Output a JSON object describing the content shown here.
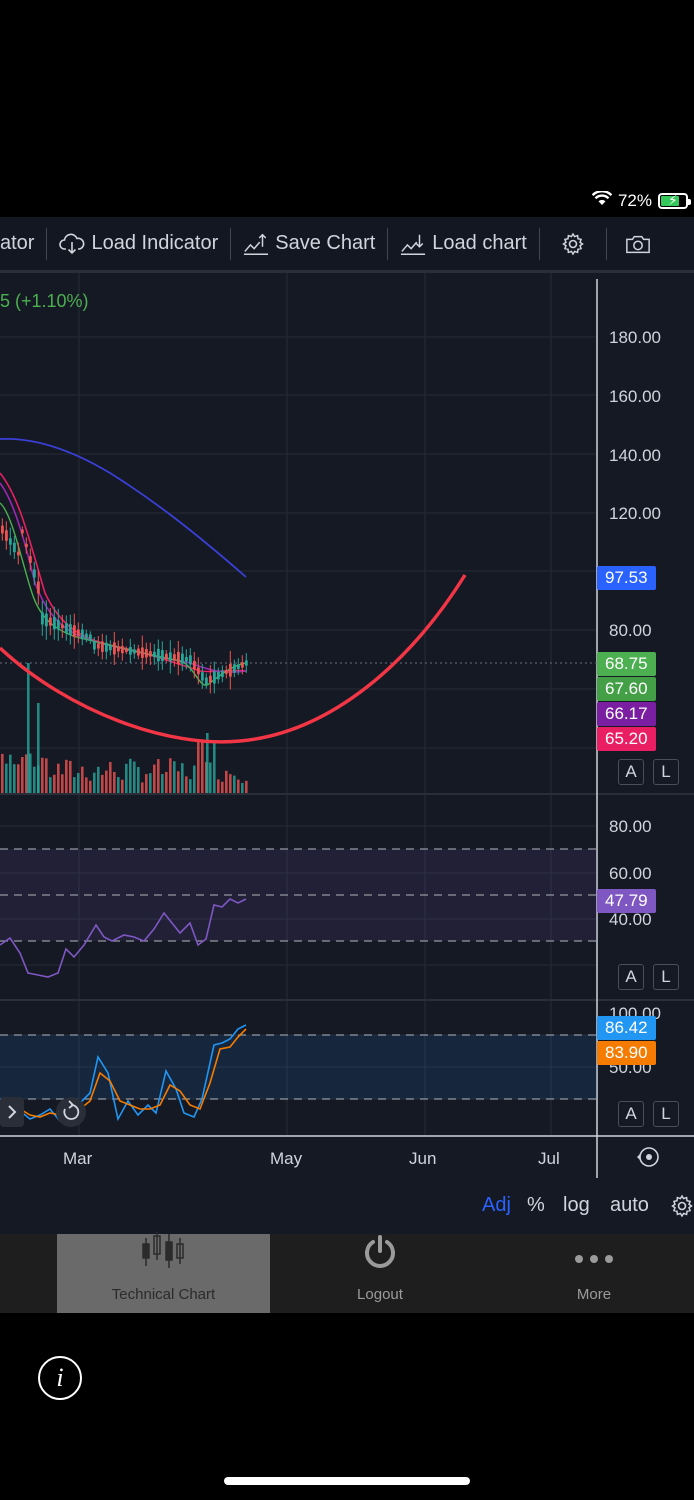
{
  "status_bar": {
    "battery": "72%"
  },
  "toolbar": {
    "items": [
      {
        "label": "ator"
      },
      {
        "label": "Load Indicator",
        "icon": "cloud-download-icon"
      },
      {
        "label": "Save Chart",
        "icon": "chart-upload-icon"
      },
      {
        "label": "Load chart",
        "icon": "chart-download-icon"
      }
    ],
    "settings_icon": "gear-icon",
    "camera_icon": "camera-icon"
  },
  "chart": {
    "change_label": "5 (+1.10%)",
    "price_axis": [
      "180.00",
      "160.00",
      "140.00",
      "120.00",
      "80.00"
    ],
    "price_tags": [
      {
        "text": "97.53",
        "color": "#2962ff"
      },
      {
        "text": "68.75",
        "color": "#4caf50"
      },
      {
        "text": "67.60",
        "color": "#43a047"
      },
      {
        "text": "66.17",
        "color": "#7b1fa2"
      },
      {
        "text": "65.20",
        "color": "#e91e63"
      }
    ],
    "rsi_axis": [
      "80.00",
      "60.00",
      "40.00"
    ],
    "rsi_tag": {
      "text": "47.79",
      "color": "#7e57c2"
    },
    "stoch_axis": [
      "100.00",
      "50.00"
    ],
    "stoch_tags": [
      {
        "text": "86.42",
        "color": "#2196f3"
      },
      {
        "text": "83.90",
        "color": "#f57c00"
      }
    ],
    "time_axis": [
      "Mar",
      "May",
      "Jun",
      "Jul"
    ],
    "pane_buttons": {
      "auto_label": "A",
      "log_label": "L"
    }
  },
  "scale_bar": {
    "adj": "Adj",
    "percent": "%",
    "log": "log",
    "auto": "auto"
  },
  "tab_bar": {
    "tabs": [
      {
        "label": "Technical Chart",
        "icon": "candlestick-icon",
        "active": true
      },
      {
        "label": "Logout",
        "icon": "power-icon",
        "active": false
      },
      {
        "label": "More",
        "icon": "more-dots-icon",
        "active": false
      }
    ]
  },
  "colors": {
    "background": "#151924",
    "toolbar": "#131722",
    "accent_red": "#f23645"
  }
}
